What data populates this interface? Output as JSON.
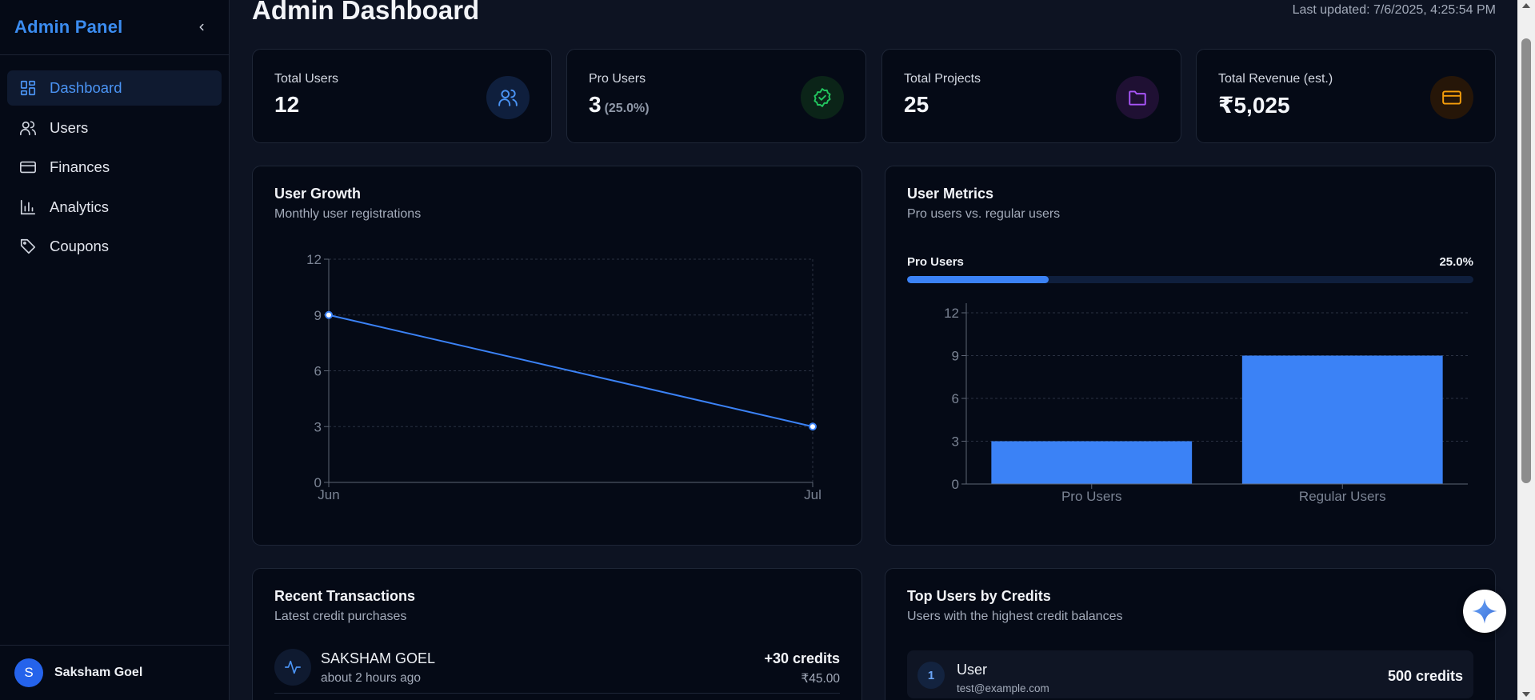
{
  "sidebar": {
    "title": "Admin Panel",
    "items": [
      {
        "label": "Dashboard",
        "icon": "dashboard-icon",
        "active": true
      },
      {
        "label": "Users",
        "icon": "users-icon",
        "active": false
      },
      {
        "label": "Finances",
        "icon": "credit-card-icon",
        "active": false
      },
      {
        "label": "Analytics",
        "icon": "bar-chart-icon",
        "active": false
      },
      {
        "label": "Coupons",
        "icon": "tag-icon",
        "active": false
      }
    ],
    "user": {
      "initial": "S",
      "name": "Saksham Goel"
    }
  },
  "header": {
    "title": "Admin Dashboard",
    "last_updated": "Last updated: 7/6/2025, 4:25:54 PM"
  },
  "stats": [
    {
      "label": "Total Users",
      "value": "12",
      "sub": "",
      "icon": "users-icon",
      "color": "#3b82f6"
    },
    {
      "label": "Pro Users",
      "value": "3",
      "sub": "(25.0%)",
      "icon": "badge-check-icon",
      "color": "#22c55e"
    },
    {
      "label": "Total Projects",
      "value": "25",
      "sub": "",
      "icon": "folder-icon",
      "color": "#a855f7"
    },
    {
      "label": "Total Revenue (est.)",
      "value": "₹5,025",
      "sub": "",
      "icon": "credit-card-icon",
      "color": "#f59e0b"
    }
  ],
  "user_growth": {
    "title": "User Growth",
    "subtitle": "Monthly user registrations"
  },
  "user_metrics": {
    "title": "User Metrics",
    "subtitle": "Pro users vs. regular users",
    "progress_label": "Pro Users",
    "progress_value": "25.0%",
    "progress_fraction": 0.25
  },
  "chart_data": [
    {
      "type": "line",
      "title": "User Growth",
      "x": [
        "Jun",
        "Jul"
      ],
      "series": [
        {
          "name": "Registrations",
          "values": [
            9,
            3
          ]
        }
      ],
      "ylim": [
        0,
        12
      ],
      "yticks": [
        0,
        3,
        6,
        9,
        12
      ],
      "grid": true,
      "color": "#3b82f6"
    },
    {
      "type": "bar",
      "title": "User Metrics",
      "categories": [
        "Pro Users",
        "Regular Users"
      ],
      "values": [
        3,
        9
      ],
      "ylim": [
        0,
        12
      ],
      "yticks": [
        0,
        3,
        6,
        9,
        12
      ],
      "grid": true,
      "color": "#3b82f6"
    }
  ],
  "transactions": {
    "title": "Recent Transactions",
    "subtitle": "Latest credit purchases",
    "items": [
      {
        "name": "SAKSHAM GOEL",
        "time": "about 2 hours ago",
        "credits": "+30 credits",
        "amount": "₹45.00"
      }
    ]
  },
  "top_users": {
    "title": "Top Users by Credits",
    "subtitle": "Users with the highest credit balances",
    "items": [
      {
        "rank": "1",
        "name": "User",
        "email": "test@example.com",
        "credits": "500 credits"
      }
    ]
  }
}
